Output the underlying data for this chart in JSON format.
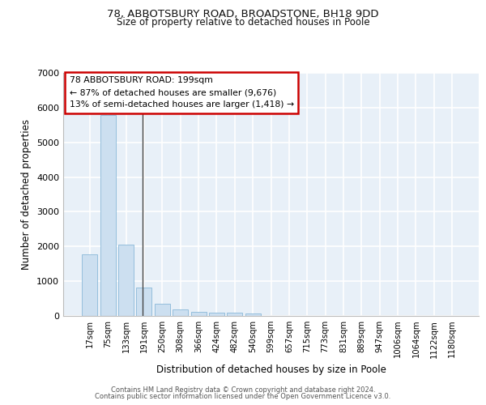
{
  "title1": "78, ABBOTSBURY ROAD, BROADSTONE, BH18 9DD",
  "title2": "Size of property relative to detached houses in Poole",
  "xlabel": "Distribution of detached houses by size in Poole",
  "ylabel": "Number of detached properties",
  "bar_color": "#ccdff0",
  "bar_edge_color": "#89b8d8",
  "background_color": "#e8f0f8",
  "grid_color": "#ffffff",
  "categories": [
    "17sqm",
    "75sqm",
    "133sqm",
    "191sqm",
    "250sqm",
    "308sqm",
    "366sqm",
    "424sqm",
    "482sqm",
    "540sqm",
    "599sqm",
    "657sqm",
    "715sqm",
    "773sqm",
    "831sqm",
    "889sqm",
    "947sqm",
    "1006sqm",
    "1064sqm",
    "1122sqm",
    "1180sqm"
  ],
  "values": [
    1780,
    5780,
    2060,
    820,
    340,
    195,
    115,
    105,
    95,
    65,
    0,
    0,
    0,
    0,
    0,
    0,
    0,
    0,
    0,
    0,
    0
  ],
  "annotation_line1": "78 ABBOTSBURY ROAD: 199sqm",
  "annotation_line2": "← 87% of detached houses are smaller (9,676)",
  "annotation_line3": "13% of semi-detached houses are larger (1,418) →",
  "annotation_box_fc": "#ffffff",
  "annotation_box_ec": "#cc0000",
  "ylim": [
    0,
    7000
  ],
  "yticks": [
    0,
    1000,
    2000,
    3000,
    4000,
    5000,
    6000,
    7000
  ],
  "vline_x": 2.9,
  "footer1": "Contains HM Land Registry data © Crown copyright and database right 2024.",
  "footer2": "Contains public sector information licensed under the Open Government Licence v3.0."
}
